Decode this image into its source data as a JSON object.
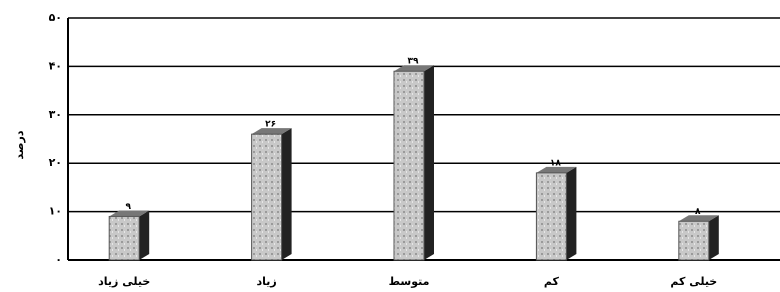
{
  "chart_data": {
    "type": "bar3d",
    "y_label": "درصد",
    "categories": [
      "خیلی زیاد",
      "زیاد",
      "متوسط",
      "کم",
      "خیلی کم"
    ],
    "values": [
      9,
      26,
      39,
      18,
      8
    ],
    "value_labels": [
      "۹",
      "۲۶",
      "۳۹",
      "۱۸",
      "۸"
    ],
    "color": "#bdbdbd",
    "ylim": [
      0,
      50
    ],
    "yticks": [
      {
        "value": 0,
        "label": "۰"
      },
      {
        "value": 10,
        "label": "۱۰"
      },
      {
        "value": 20,
        "label": "۲۰"
      },
      {
        "value": 30,
        "label": "۳۰"
      },
      {
        "value": 40,
        "label": "۴۰"
      },
      {
        "value": 50,
        "label": "۵۰"
      }
    ],
    "grid": true
  }
}
